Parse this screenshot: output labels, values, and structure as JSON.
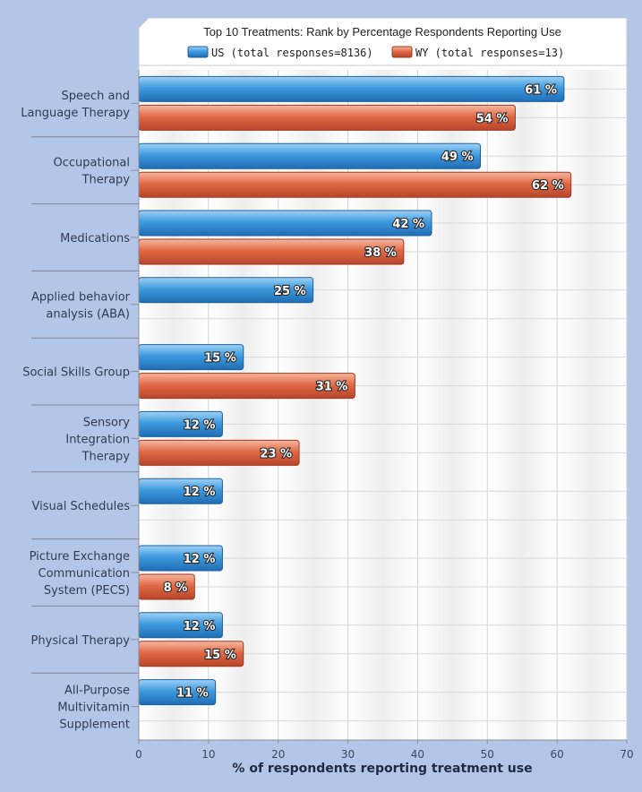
{
  "chart_data": {
    "type": "bar",
    "orientation": "horizontal",
    "title": "Top 10 Treatments: Rank by Percentage Respondents Reporting Use",
    "xlabel": "% of respondents reporting treatment use",
    "xlim": [
      0,
      70
    ],
    "xticks": [
      "0",
      "10",
      "20",
      "30",
      "40",
      "50",
      "60",
      "70"
    ],
    "grid": true,
    "legend_position": "top",
    "categories": [
      [
        "Speech and",
        "Language Therapy"
      ],
      [
        "Occupational",
        "Therapy"
      ],
      [
        "Medications"
      ],
      [
        "Applied behavior",
        "analysis (ABA)"
      ],
      [
        "Social Skills Group"
      ],
      [
        "Sensory",
        "Integration",
        "Therapy"
      ],
      [
        "Visual Schedules"
      ],
      [
        "Picture Exchange",
        "Communication",
        "System (PECS)"
      ],
      [
        "Physical Therapy"
      ],
      [
        "All-Purpose",
        "Multivitamin",
        "Supplement"
      ]
    ],
    "series": [
      {
        "name": "US (total responses=8136)",
        "color": "#3b97dc",
        "values": [
          61,
          49,
          42,
          25,
          15,
          12,
          12,
          12,
          12,
          11
        ],
        "labels": [
          "61 %",
          "49 %",
          "42 %",
          "25 %",
          "15 %",
          "12 %",
          "12 %",
          "12 %",
          "12 %",
          "11 %"
        ]
      },
      {
        "name": "WY (total responses=13)",
        "color": "#e06c4a",
        "values": [
          54,
          62,
          38,
          null,
          31,
          23,
          null,
          8,
          15,
          null
        ],
        "labels": [
          "54 %",
          "62 %",
          "38 %",
          null,
          "31 %",
          "23 %",
          null,
          "8 %",
          "15 %",
          null
        ]
      }
    ]
  }
}
